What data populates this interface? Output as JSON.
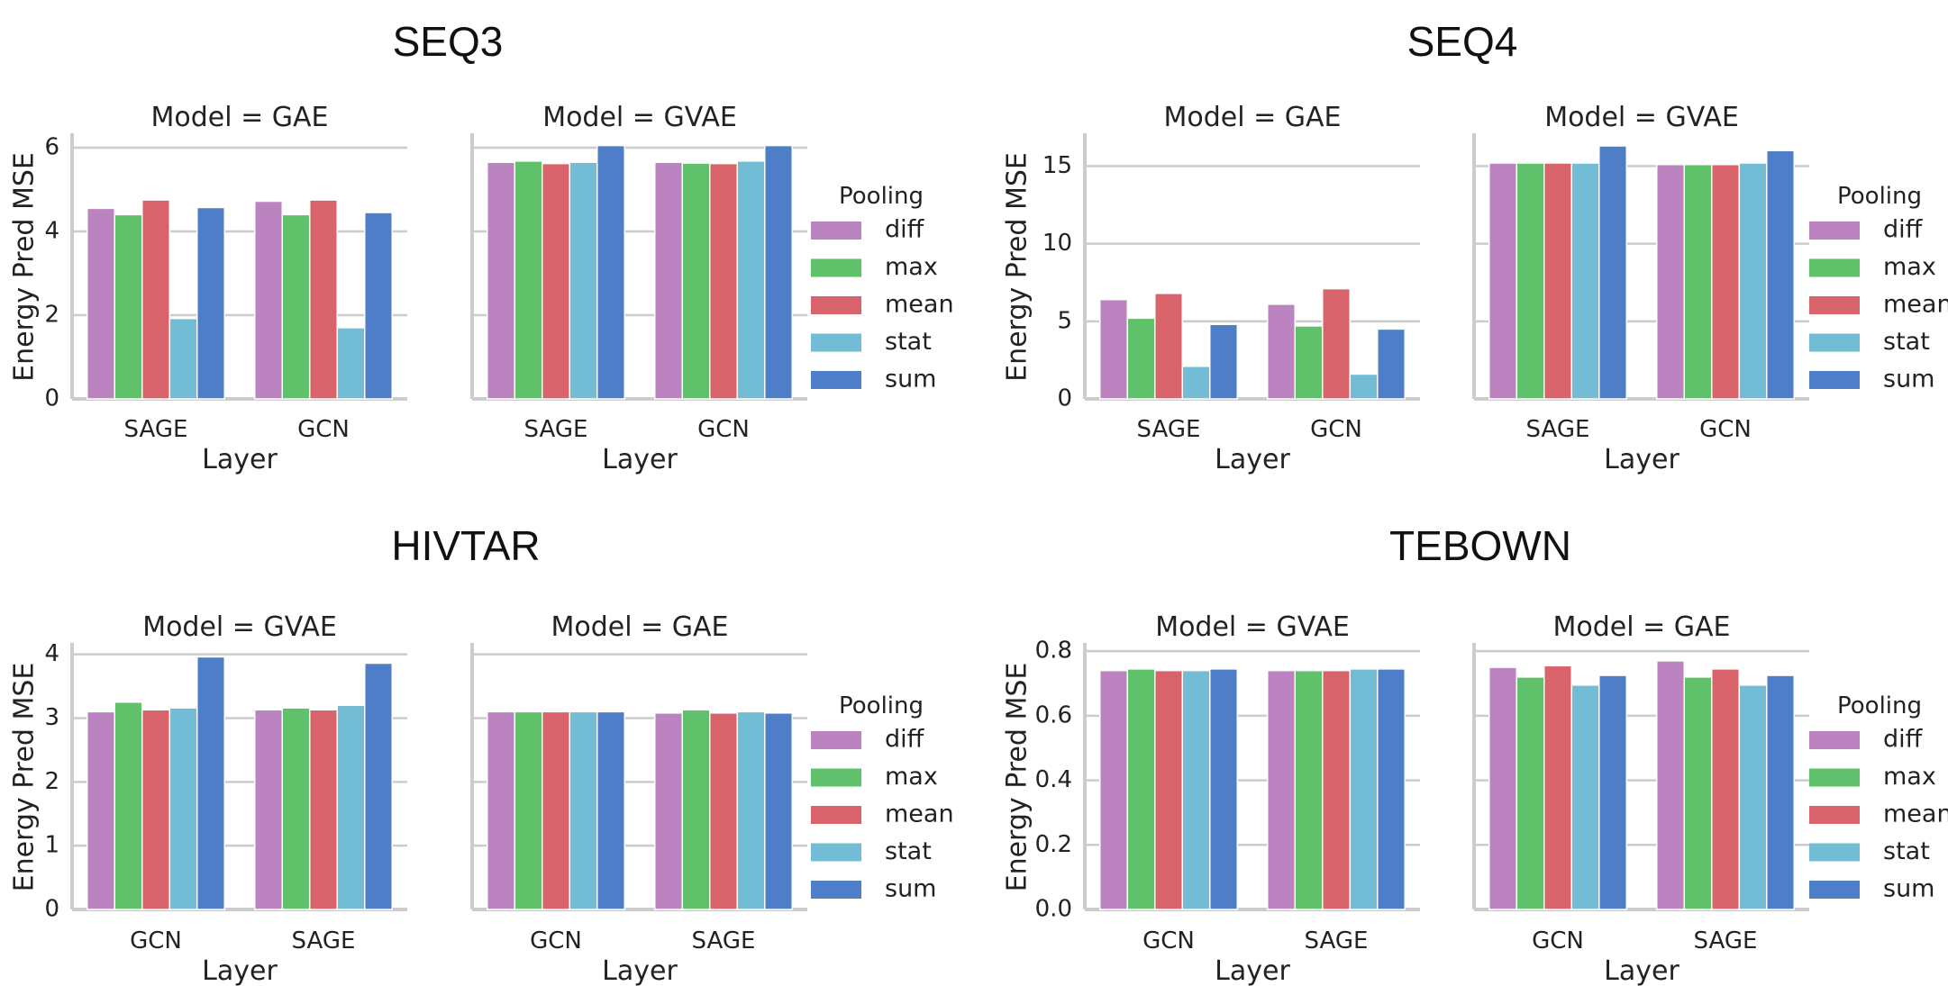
{
  "colors": {
    "diff": "#bb84c0",
    "max": "#5fc16a",
    "mean": "#d9636b",
    "stat": "#72bcd5",
    "sum": "#4f7ec8"
  },
  "chart_data": [
    {
      "type": "bar",
      "title": "SEQ3",
      "ylabel": "Energy Pred MSE",
      "xlabel": "Layer",
      "ylim": [
        0,
        6.3
      ],
      "yticks": [
        "0",
        "2",
        "4",
        "6"
      ],
      "ytick_values": [
        0,
        2,
        4,
        6
      ],
      "legend_title": "Pooling",
      "panels": [
        {
          "subtitle": "Model = GAE",
          "categories": [
            "SAGE",
            "GCN"
          ],
          "series": [
            {
              "name": "diff",
              "values": [
                4.55,
                4.72
              ]
            },
            {
              "name": "max",
              "values": [
                4.4,
                4.4
              ]
            },
            {
              "name": "mean",
              "values": [
                4.75,
                4.75
              ]
            },
            {
              "name": "stat",
              "values": [
                1.92,
                1.7
              ]
            },
            {
              "name": "sum",
              "values": [
                4.57,
                4.45
              ]
            }
          ]
        },
        {
          "subtitle": "Model = GVAE",
          "categories": [
            "SAGE",
            "GCN"
          ],
          "series": [
            {
              "name": "diff",
              "values": [
                5.65,
                5.65
              ]
            },
            {
              "name": "max",
              "values": [
                5.68,
                5.63
              ]
            },
            {
              "name": "mean",
              "values": [
                5.62,
                5.62
              ]
            },
            {
              "name": "stat",
              "values": [
                5.65,
                5.68
              ]
            },
            {
              "name": "sum",
              "values": [
                6.05,
                6.05
              ]
            }
          ]
        }
      ]
    },
    {
      "type": "bar",
      "title": "SEQ4",
      "ylabel": "Energy Pred MSE",
      "xlabel": "Layer",
      "ylim": [
        0,
        17
      ],
      "yticks": [
        "0",
        "5",
        "10",
        "15"
      ],
      "ytick_values": [
        0,
        5,
        10,
        15
      ],
      "legend_title": "Pooling",
      "panels": [
        {
          "subtitle": "Model = GAE",
          "categories": [
            "SAGE",
            "GCN"
          ],
          "series": [
            {
              "name": "diff",
              "values": [
                6.4,
                6.1
              ]
            },
            {
              "name": "max",
              "values": [
                5.2,
                4.7
              ]
            },
            {
              "name": "mean",
              "values": [
                6.8,
                7.1
              ]
            },
            {
              "name": "stat",
              "values": [
                2.1,
                1.6
              ]
            },
            {
              "name": "sum",
              "values": [
                4.8,
                4.5
              ]
            }
          ]
        },
        {
          "subtitle": "Model = GVAE",
          "categories": [
            "SAGE",
            "GCN"
          ],
          "series": [
            {
              "name": "diff",
              "values": [
                15.2,
                15.1
              ]
            },
            {
              "name": "max",
              "values": [
                15.2,
                15.1
              ]
            },
            {
              "name": "mean",
              "values": [
                15.2,
                15.1
              ]
            },
            {
              "name": "stat",
              "values": [
                15.2,
                15.2
              ]
            },
            {
              "name": "sum",
              "values": [
                16.3,
                16.0
              ]
            }
          ]
        }
      ]
    },
    {
      "type": "bar",
      "title": "HIVTAR",
      "ylabel": "Energy Pred MSE",
      "xlabel": "Layer",
      "ylim": [
        0,
        4.15
      ],
      "yticks": [
        "0",
        "1",
        "2",
        "3",
        "4"
      ],
      "ytick_values": [
        0,
        1,
        2,
        3,
        4
      ],
      "legend_title": "Pooling",
      "panels": [
        {
          "subtitle": "Model = GVAE",
          "categories": [
            "GCN",
            "SAGE"
          ],
          "series": [
            {
              "name": "diff",
              "values": [
                3.1,
                3.13
              ]
            },
            {
              "name": "max",
              "values": [
                3.25,
                3.16
              ]
            },
            {
              "name": "mean",
              "values": [
                3.13,
                3.13
              ]
            },
            {
              "name": "stat",
              "values": [
                3.16,
                3.2
              ]
            },
            {
              "name": "sum",
              "values": [
                3.96,
                3.86
              ]
            }
          ]
        },
        {
          "subtitle": "Model = GAE",
          "categories": [
            "GCN",
            "SAGE"
          ],
          "series": [
            {
              "name": "diff",
              "values": [
                3.1,
                3.08
              ]
            },
            {
              "name": "max",
              "values": [
                3.1,
                3.13
              ]
            },
            {
              "name": "mean",
              "values": [
                3.1,
                3.08
              ]
            },
            {
              "name": "stat",
              "values": [
                3.1,
                3.1
              ]
            },
            {
              "name": "sum",
              "values": [
                3.1,
                3.08
              ]
            }
          ]
        }
      ]
    },
    {
      "type": "bar",
      "title": "TEBOWN",
      "ylabel": "Energy Pred MSE",
      "xlabel": "Layer",
      "ylim": [
        0,
        0.82
      ],
      "yticks": [
        "0.0",
        "0.2",
        "0.4",
        "0.6",
        "0.8"
      ],
      "ytick_values": [
        0,
        0.2,
        0.4,
        0.6,
        0.8
      ],
      "legend_title": "Pooling",
      "panels": [
        {
          "subtitle": "Model = GVAE",
          "categories": [
            "GCN",
            "SAGE"
          ],
          "series": [
            {
              "name": "diff",
              "values": [
                0.74,
                0.74
              ]
            },
            {
              "name": "max",
              "values": [
                0.745,
                0.74
              ]
            },
            {
              "name": "mean",
              "values": [
                0.74,
                0.74
              ]
            },
            {
              "name": "stat",
              "values": [
                0.74,
                0.745
              ]
            },
            {
              "name": "sum",
              "values": [
                0.745,
                0.745
              ]
            }
          ]
        },
        {
          "subtitle": "Model = GAE",
          "categories": [
            "GCN",
            "SAGE"
          ],
          "series": [
            {
              "name": "diff",
              "values": [
                0.75,
                0.77
              ]
            },
            {
              "name": "max",
              "values": [
                0.72,
                0.72
              ]
            },
            {
              "name": "mean",
              "values": [
                0.755,
                0.745
              ]
            },
            {
              "name": "stat",
              "values": [
                0.695,
                0.695
              ]
            },
            {
              "name": "sum",
              "values": [
                0.725,
                0.725
              ]
            }
          ]
        }
      ]
    }
  ]
}
